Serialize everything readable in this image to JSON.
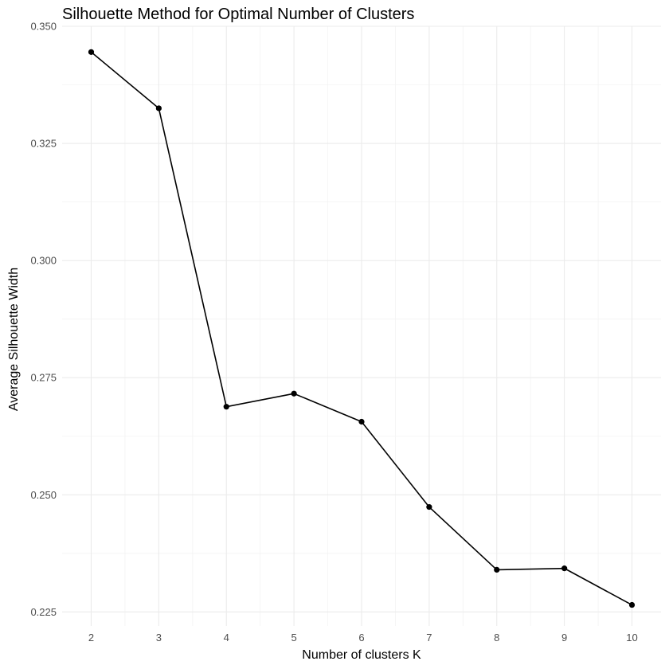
{
  "chart_data": {
    "type": "line",
    "title": "Silhouette Method for Optimal Number of Clusters",
    "xlabel": "Number of clusters K",
    "ylabel": "Average Silhouette Width",
    "x": [
      2,
      3,
      4,
      5,
      6,
      7,
      8,
      9,
      10
    ],
    "series": [
      {
        "values": [
          0.3445,
          0.3325,
          0.2688,
          0.2716,
          0.2656,
          0.2474,
          0.234,
          0.2343,
          0.2265
        ]
      }
    ],
    "xlim": [
      1.57,
      10.43
    ],
    "ylim": [
      0.222,
      0.35
    ],
    "x_ticks": [
      "2",
      "3",
      "4",
      "5",
      "6",
      "7",
      "8",
      "9",
      "10"
    ],
    "y_ticks": [
      {
        "value": 0.225,
        "label": "0.225"
      },
      {
        "value": 0.25,
        "label": "0.250"
      },
      {
        "value": 0.275,
        "label": "0.275"
      },
      {
        "value": 0.3,
        "label": "0.300"
      },
      {
        "value": 0.325,
        "label": "0.325"
      },
      {
        "value": 0.35,
        "label": "0.350"
      }
    ],
    "grid": true,
    "legend": "none",
    "colors": {
      "line": "#000000",
      "point": "#000000",
      "grid_major": "#ebebeb",
      "grid_minor": "#f3f3f3",
      "background": "#ffffff"
    }
  }
}
